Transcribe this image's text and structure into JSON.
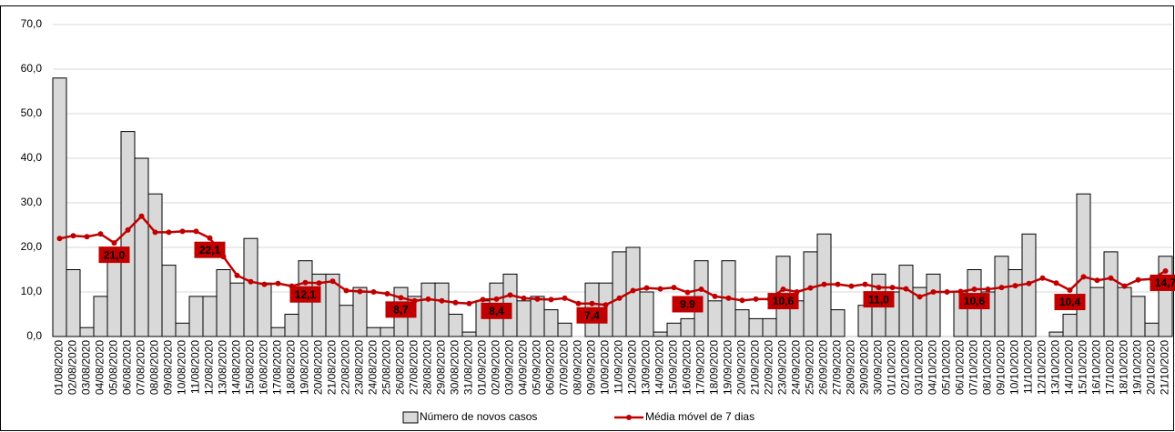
{
  "chart_data": {
    "type": "bar_line",
    "categories": [
      "01/08/2020",
      "02/08/2020",
      "03/08/2020",
      "04/08/2020",
      "05/08/2020",
      "06/08/2020",
      "07/08/2020",
      "08/08/2020",
      "09/08/2020",
      "10/08/2020",
      "11/08/2020",
      "12/08/2020",
      "13/08/2020",
      "14/08/2020",
      "15/08/2020",
      "16/08/2020",
      "17/08/2020",
      "18/08/2020",
      "19/08/2020",
      "20/08/2020",
      "21/08/2020",
      "22/08/2020",
      "23/08/2020",
      "24/08/2020",
      "25/08/2020",
      "26/08/2020",
      "27/08/2020",
      "28/08/2020",
      "29/08/2020",
      "30/08/2020",
      "31/08/2020",
      "01/09/2020",
      "02/09/2020",
      "03/09/2020",
      "04/09/2020",
      "05/09/2020",
      "06/09/2020",
      "07/09/2020",
      "08/09/2020",
      "09/09/2020",
      "10/09/2020",
      "11/09/2020",
      "12/09/2020",
      "13/09/2020",
      "14/09/2020",
      "15/09/2020",
      "16/09/2020",
      "17/09/2020",
      "18/09/2020",
      "19/09/2020",
      "20/09/2020",
      "21/09/2020",
      "22/09/2020",
      "23/09/2020",
      "24/09/2020",
      "25/09/2020",
      "26/09/2020",
      "27/09/2020",
      "28/09/2020",
      "29/09/2020",
      "30/09/2020",
      "01/10/2020",
      "02/10/2020",
      "03/10/2020",
      "04/10/2020",
      "05/10/2020",
      "06/10/2020",
      "07/10/2020",
      "08/10/2020",
      "09/10/2020",
      "10/10/2020",
      "11/10/2020",
      "12/10/2020",
      "13/10/2020",
      "14/10/2020",
      "15/10/2020",
      "16/10/2020",
      "17/10/2020",
      "18/10/2020",
      "19/10/2020",
      "20/10/2020",
      "21/10/2020"
    ],
    "series": [
      {
        "name": "Número de novos casos",
        "type": "bar",
        "color": "#d9d9d9",
        "values": [
          58,
          15,
          2,
          9,
          18,
          46,
          40,
          32,
          16,
          3,
          9,
          9,
          15,
          12,
          22,
          12,
          2,
          5,
          17,
          14,
          14,
          7,
          11,
          2,
          2,
          11,
          9,
          12,
          12,
          5,
          1,
          8,
          12,
          14,
          8,
          9,
          6,
          3,
          0,
          12,
          12,
          19,
          20,
          10,
          1,
          3,
          4,
          17,
          8,
          17,
          6,
          4,
          4,
          18,
          8,
          19,
          23,
          6,
          0,
          7,
          14,
          10,
          16,
          11,
          14,
          0,
          10,
          15,
          10,
          18,
          15,
          23,
          0,
          1,
          5,
          32,
          11,
          19,
          11,
          9,
          3,
          18
        ]
      },
      {
        "name": "Média móvel de 7 dias",
        "type": "line",
        "color": "#c00000",
        "values": [
          22.0,
          22.6,
          22.4,
          23.0,
          21.0,
          23.9,
          27.0,
          23.4,
          23.4,
          23.6,
          23.6,
          22.1,
          17.9,
          13.7,
          12.3,
          11.7,
          11.9,
          11.3,
          12.1,
          12.0,
          12.4,
          10.3,
          10.1,
          10.0,
          9.6,
          8.7,
          8.0,
          8.4,
          8.0,
          7.6,
          7.4,
          8.3,
          8.4,
          9.3,
          8.6,
          8.4,
          8.3,
          8.6,
          7.4,
          7.4,
          7.1,
          8.6,
          10.3,
          10.9,
          10.7,
          11.0,
          9.9,
          10.6,
          9.0,
          8.6,
          8.1,
          8.4,
          8.4,
          10.6,
          10.0,
          10.9,
          11.7,
          11.7,
          11.3,
          11.7,
          11.0,
          11.0,
          10.7,
          8.9,
          10.0,
          10.0,
          10.1,
          10.6,
          10.6,
          11.0,
          11.4,
          11.9,
          13.1,
          12.0,
          10.4,
          13.4,
          12.6,
          13.1,
          11.3,
          12.7,
          12.9,
          14.7
        ],
        "value_labels": [
          null,
          null,
          null,
          null,
          "21,0",
          null,
          null,
          null,
          null,
          null,
          null,
          "22,1",
          null,
          null,
          null,
          null,
          null,
          null,
          "12,1",
          null,
          null,
          null,
          null,
          null,
          null,
          "8,7",
          null,
          null,
          null,
          null,
          null,
          null,
          "8,4",
          null,
          null,
          null,
          null,
          null,
          null,
          "7,4",
          null,
          null,
          null,
          null,
          null,
          null,
          "9,9",
          null,
          null,
          null,
          null,
          null,
          null,
          "10,6",
          null,
          null,
          null,
          null,
          null,
          null,
          "11,0",
          null,
          null,
          null,
          null,
          null,
          null,
          "10,6",
          null,
          null,
          null,
          null,
          null,
          null,
          "10,4",
          null,
          null,
          null,
          null,
          null,
          null,
          "14,7"
        ]
      }
    ],
    "ylim": [
      0,
      70
    ],
    "yticks": [
      {
        "value": 0,
        "label": "0,0"
      },
      {
        "value": 10,
        "label": "10,0"
      },
      {
        "value": 20,
        "label": "20,0"
      },
      {
        "value": 30,
        "label": "30,0"
      },
      {
        "value": 40,
        "label": "40,0"
      },
      {
        "value": 50,
        "label": "50,0"
      },
      {
        "value": 60,
        "label": "60,0"
      },
      {
        "value": 70,
        "label": "70,0"
      }
    ],
    "grid": true,
    "legend": "bottom"
  }
}
